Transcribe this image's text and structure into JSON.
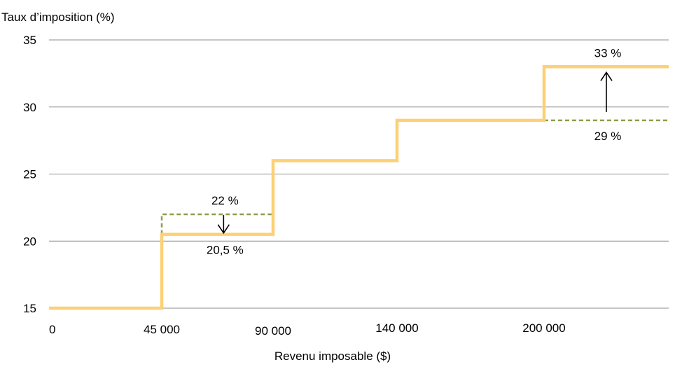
{
  "chart_data": {
    "type": "line",
    "title": "",
    "ylabel": "Taux d’imposition  (%)",
    "xlabel": "Revenu imposable ($)",
    "ylim": [
      15,
      35
    ],
    "y_ticks": [
      "15",
      "20",
      "25",
      "30",
      "35"
    ],
    "x_ticks": [
      {
        "value": 0,
        "label": "0"
      },
      {
        "value": 45000,
        "label": "45 000"
      },
      {
        "value": 90000,
        "label": "90 000"
      },
      {
        "value": 140000,
        "label": "140 000"
      },
      {
        "value": 200000,
        "label": "200 000"
      }
    ],
    "grid": true,
    "series": [
      {
        "color": "#FDD077",
        "style": "solid",
        "points": [
          [
            0,
            15
          ],
          [
            45000,
            15
          ],
          [
            45000,
            20.5
          ],
          [
            90000,
            20.5
          ],
          [
            90000,
            26
          ],
          [
            140000,
            26
          ],
          [
            140000,
            29
          ],
          [
            200000,
            29
          ],
          [
            200000,
            33
          ],
          [
            250000,
            33
          ]
        ]
      },
      {
        "color": "#8D9E4A",
        "style": "dashed",
        "segments": [
          [
            [
              45000,
              20.5
            ],
            [
              45000,
              22
            ],
            [
              90000,
              22
            ]
          ],
          [
            [
              200000,
              29
            ],
            [
              250000,
              29
            ]
          ]
        ]
      }
    ],
    "annotations": [
      {
        "text": "22 %",
        "x": 70000,
        "y": 22,
        "arrow": "down",
        "label_pos": "above"
      },
      {
        "text": "20,5 %",
        "x": 70000,
        "y": 20.5,
        "label_pos": "below"
      },
      {
        "text": "33 %",
        "x": 225000,
        "y": 33,
        "arrow": "up",
        "label_pos": "above"
      },
      {
        "text": "29 %",
        "x": 225000,
        "y": 29,
        "label_pos": "below"
      }
    ]
  }
}
